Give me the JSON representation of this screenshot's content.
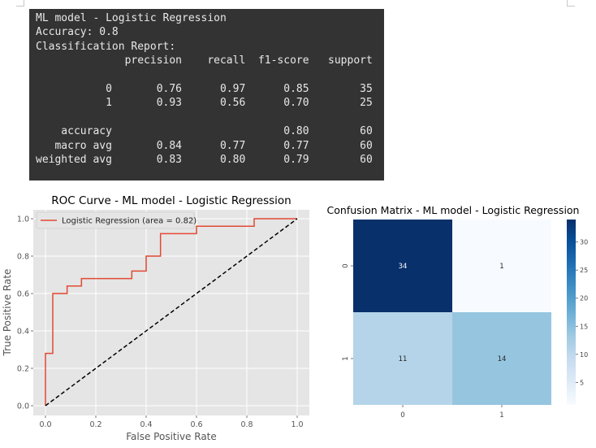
{
  "report": {
    "lines": [
      "ML model - Logistic Regression",
      "Accuracy: 0.8",
      "Classification Report:",
      "              precision    recall  f1-score   support",
      "",
      "           0       0.76      0.97      0.85        35",
      "           1       0.93      0.56      0.70        25",
      "",
      "    accuracy                           0.80        60",
      "   macro avg       0.84      0.77      0.77        60",
      "weighted avg       0.83      0.80      0.79        60"
    ]
  },
  "chart_data": [
    {
      "type": "line",
      "title": "ROC Curve - ML model - Logistic Regression",
      "xlabel": "False Positive Rate",
      "ylabel": "True Positive Rate",
      "xlim": [
        0.0,
        1.0
      ],
      "ylim": [
        0.0,
        1.0
      ],
      "xticks": [
        "0.0",
        "0.2",
        "0.4",
        "0.6",
        "0.8",
        "1.0"
      ],
      "yticks": [
        "0.0",
        "0.2",
        "0.4",
        "0.6",
        "0.8",
        "1.0"
      ],
      "grid": true,
      "legend_position": "upper-left",
      "series": [
        {
          "name": "Logistic Regression (area = 0.82)",
          "color": "#e24a33",
          "style": "step",
          "x": [
            0.0,
            0.0,
            0.0,
            0.029,
            0.029,
            0.086,
            0.086,
            0.143,
            0.143,
            0.343,
            0.343,
            0.4,
            0.4,
            0.457,
            0.457,
            0.6,
            0.6,
            0.829,
            0.829,
            1.0
          ],
          "y": [
            0.0,
            0.04,
            0.28,
            0.28,
            0.6,
            0.6,
            0.64,
            0.64,
            0.68,
            0.68,
            0.72,
            0.72,
            0.8,
            0.8,
            0.92,
            0.92,
            0.96,
            0.96,
            1.0,
            1.0
          ]
        },
        {
          "name": "",
          "color": "#000000",
          "style": "dashed",
          "x": [
            0,
            1
          ],
          "y": [
            0,
            1
          ]
        }
      ]
    },
    {
      "type": "heatmap",
      "title": "Confusion Matrix - ML model - Logistic Regression",
      "row_labels": [
        "0",
        "1"
      ],
      "col_labels": [
        "0",
        "1"
      ],
      "values": [
        [
          34,
          1
        ],
        [
          11,
          14
        ]
      ],
      "colormap": "Blues",
      "colorbar_ticks": [
        5,
        10,
        15,
        20,
        25,
        30
      ]
    }
  ]
}
